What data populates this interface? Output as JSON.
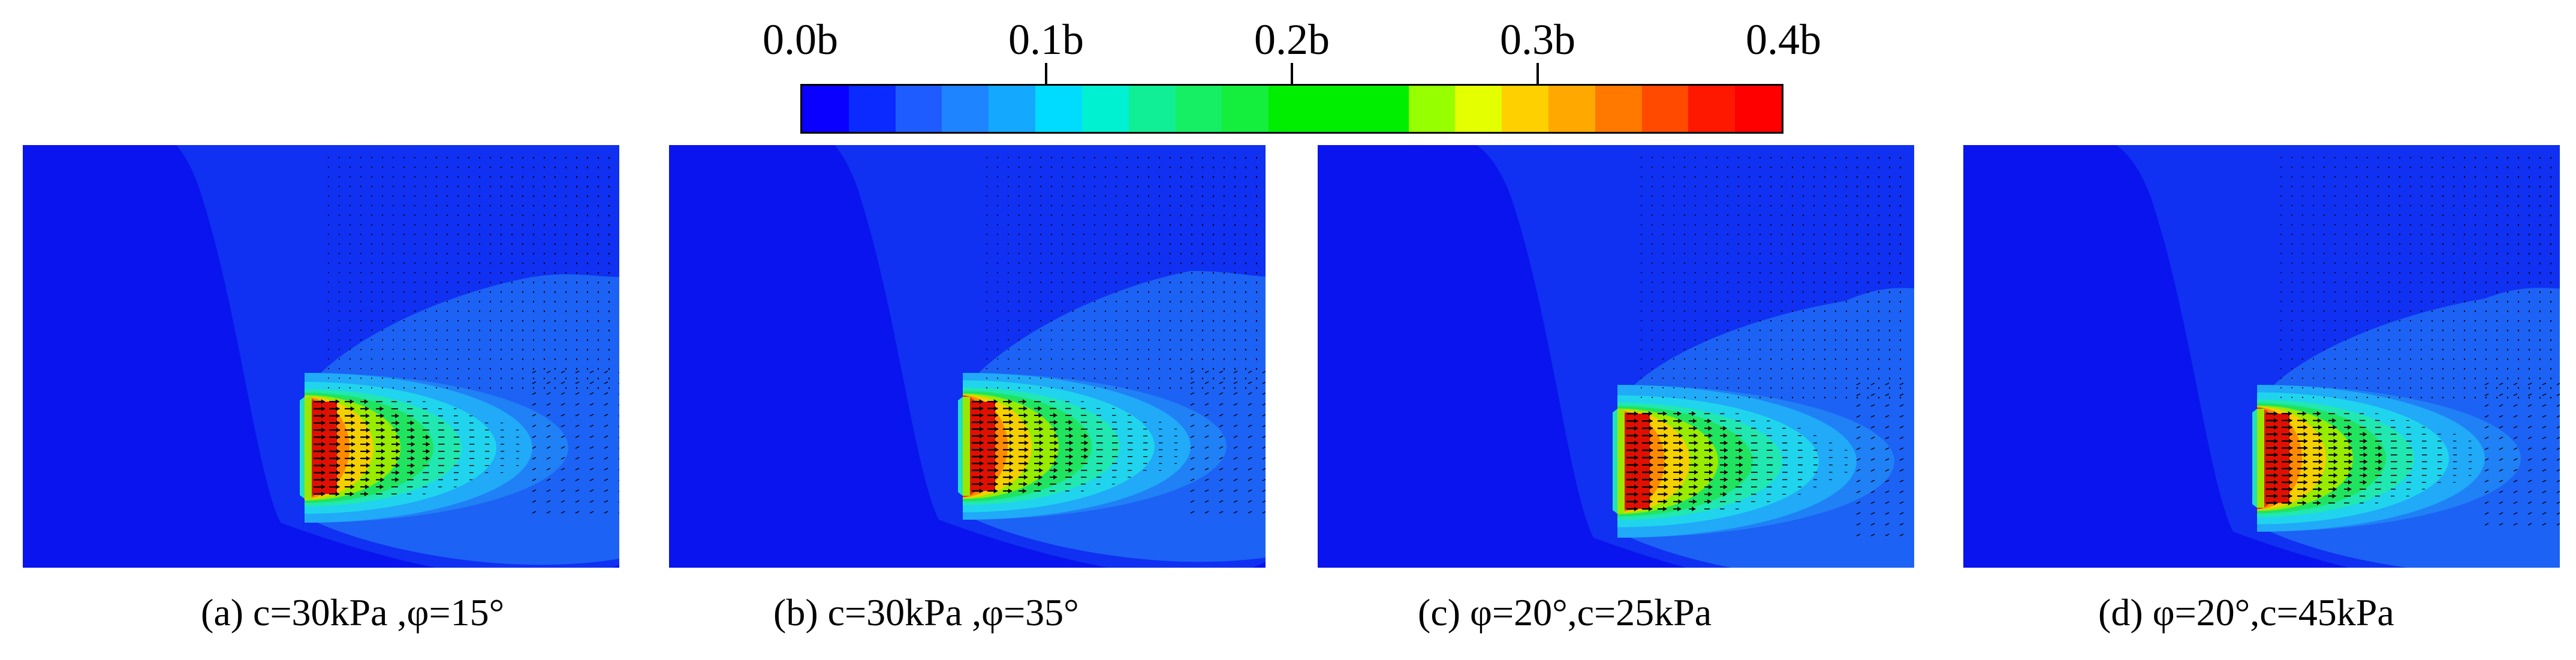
{
  "colorbar": {
    "ticks": [
      {
        "label": "0.0b",
        "value": 0.0
      },
      {
        "label": "0.1b",
        "value": 0.1
      },
      {
        "label": "0.2b",
        "value": 0.2
      },
      {
        "label": "0.3b",
        "value": 0.3
      },
      {
        "label": "0.4b",
        "value": 0.4
      }
    ],
    "colors": [
      "#0a00ff",
      "#0a2aff",
      "#1e5cff",
      "#1f84ff",
      "#14a8ff",
      "#00dcff",
      "#00f0d2",
      "#10ee96",
      "#16ee64",
      "#14ee3c",
      "#00ee00",
      "#00ee00",
      "#00ee00",
      "#96ff00",
      "#e4ff00",
      "#ffd000",
      "#ffa800",
      "#ff7800",
      "#ff4a00",
      "#ff1800",
      "#ff0000"
    ]
  },
  "colors": {
    "background_blue": "#0a14ee",
    "contour_levels": [
      "#1030f2",
      "#1c62f4",
      "#2080f6",
      "#20aaf8",
      "#20d4ee",
      "#20e8b0",
      "#20e460",
      "#98ec00",
      "#f4d000",
      "#ff8a00",
      "#f03000",
      "#e01000"
    ],
    "arrow": "#000000"
  },
  "panels": [
    {
      "id": "a",
      "caption": "(a) c=30kPa ,φ=15°"
    },
    {
      "id": "b",
      "caption": "(b) c=30kPa ,φ=35°"
    },
    {
      "id": "c",
      "caption": "(c) φ=20°,c=25kPa"
    },
    {
      "id": "d",
      "caption": "(d) φ=20°,c=45kPa"
    }
  ]
}
